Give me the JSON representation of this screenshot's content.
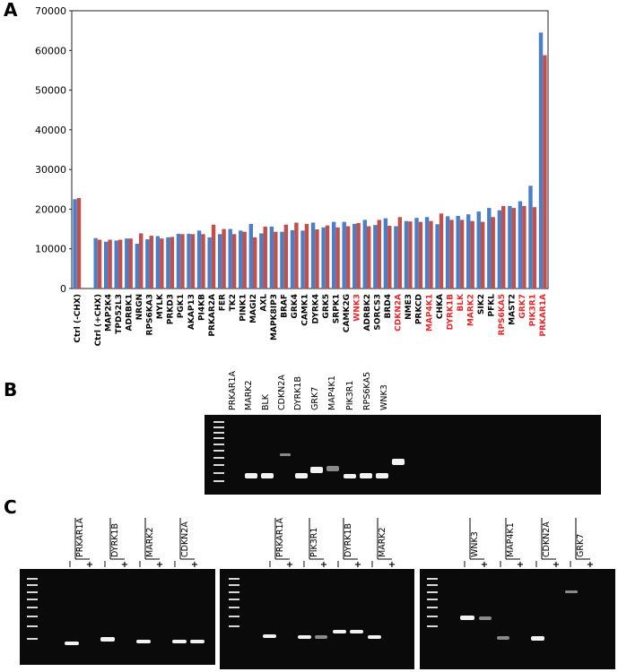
{
  "panels": {
    "a": "A",
    "b": "B",
    "c": "C"
  },
  "chart_data": {
    "type": "bar",
    "categories": [
      "Ctrl (-CHX)",
      null,
      "Ctrl (+CHX)",
      "MAP2K4",
      "TPD52L3",
      "ADRBK1",
      "NRGN",
      "RPS6KA3",
      "MYLK",
      "PRKD3",
      "PGK1",
      "AKAP13",
      "PI4KB",
      "PRKAR2A",
      "FER",
      "TK2",
      "PINK1",
      "MAGI2",
      "AXL",
      "MAPK8IP3",
      "BRAF",
      "GRK4",
      "CAMK1",
      "DYRK4",
      "GRK5",
      "SRPK1",
      "CAMK2G",
      "WNK3",
      "ADRBK2",
      "SORCS3",
      "BRD4",
      "CDKN2A",
      "NME3",
      "PRKCD",
      "MAP4K1",
      "CHKA",
      "DYRK1B",
      "BLK",
      "MARK2",
      "SIK2",
      "PFKL",
      "RPS6KA5",
      "MAST2",
      "GRK7",
      "PIK3R1",
      "PRKAR1A"
    ],
    "label_colors": [
      "#000000",
      null,
      "#000000",
      "#000000",
      "#000000",
      "#000000",
      "#000000",
      "#000000",
      "#000000",
      "#000000",
      "#000000",
      "#000000",
      "#000000",
      "#000000",
      "#000000",
      "#000000",
      "#000000",
      "#000000",
      "#000000",
      "#000000",
      "#000000",
      "#000000",
      "#000000",
      "#000000",
      "#000000",
      "#000000",
      "#000000",
      "#e8262a",
      "#000000",
      "#000000",
      "#000000",
      "#e8262a",
      "#000000",
      "#000000",
      "#e8262a",
      "#000000",
      "#e8262a",
      "#e8262a",
      "#e8262a",
      "#000000",
      "#000000",
      "#e8262a",
      "#000000",
      "#e8262a",
      "#e8262a",
      "#e8262a"
    ],
    "series": [
      {
        "color": "#4a7fc8",
        "values": [
          22500,
          null,
          12700,
          11800,
          12100,
          12600,
          11300,
          12400,
          13200,
          12900,
          13800,
          13800,
          14600,
          12900,
          13700,
          15000,
          14600,
          16300,
          13900,
          15600,
          14300,
          14700,
          14600,
          16600,
          15400,
          16800,
          16800,
          16300,
          17300,
          16000,
          17700,
          15700,
          17000,
          17800,
          18000,
          16200,
          18200,
          18300,
          18700,
          19400,
          20300,
          19700,
          20800,
          22000,
          25900,
          64500
        ]
      },
      {
        "color": "#c0504d",
        "values": [
          22800,
          null,
          12300,
          12300,
          12300,
          12600,
          13900,
          13300,
          12600,
          13000,
          13700,
          13700,
          13700,
          16100,
          15000,
          13700,
          14300,
          12900,
          15600,
          14300,
          16100,
          16600,
          16300,
          14900,
          15900,
          15400,
          15700,
          16500,
          15700,
          17300,
          15800,
          18000,
          16900,
          16800,
          17000,
          18900,
          17300,
          17300,
          17000,
          16800,
          18000,
          20800,
          20300,
          20800,
          20500,
          58800
        ]
      }
    ],
    "ylim": [
      0,
      70000
    ],
    "yticks": [
      0,
      10000,
      20000,
      30000,
      40000,
      50000,
      60000,
      70000
    ]
  },
  "gel_b": {
    "lanes": [
      "PRKAR1A",
      "MARK2",
      "BLK",
      "CDKN2A",
      "DYRK1B",
      "GRK7",
      "MAP4K1",
      "PIK3R1",
      "RPS6KA5",
      "WNK3"
    ]
  },
  "lane_marks": [
    "I",
    "+"
  ],
  "gels_c": [
    {
      "lanes": [
        "PRKAR1A",
        "DYRK1B",
        "MARK2",
        "CDKN2A"
      ]
    },
    {
      "lanes": [
        "PRKAR1A",
        "PIK3R1",
        "DYRK1B",
        "MARK2"
      ]
    },
    {
      "lanes": [
        "WNK3",
        "MAP4K1",
        "CDKN2A",
        "GRK7"
      ]
    }
  ]
}
